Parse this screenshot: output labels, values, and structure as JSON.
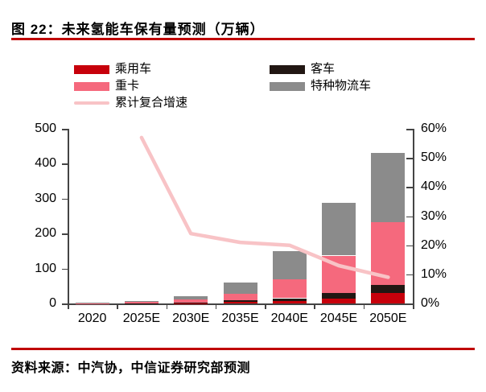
{
  "header": {
    "title": "图 22：未来氢能车保有量预测（万辆）"
  },
  "footer": {
    "source": "资料来源：中汽协，中信证券研究部预测"
  },
  "colors": {
    "accent_rule": "#c00000",
    "axis": "#444444",
    "text": "#000000"
  },
  "chart_data": {
    "type": "bar",
    "subtype": "stacked-bar-with-line",
    "title": "未来氢能车保有量预测（万辆）",
    "categories": [
      "2020",
      "2025E",
      "2030E",
      "2035E",
      "2040E",
      "2045E",
      "2050E"
    ],
    "bar_series": [
      {
        "name": "乘用车",
        "color": "#c7000b",
        "values": [
          0.1,
          0.5,
          1,
          5,
          8,
          15,
          30
        ]
      },
      {
        "name": "客车",
        "color": "#221713",
        "values": [
          0.2,
          0.5,
          1,
          4,
          7,
          15,
          22
        ]
      },
      {
        "name": "重卡",
        "color": "#f5697d",
        "values": [
          0.7,
          3,
          10,
          20,
          55,
          107,
          180
        ]
      },
      {
        "name": "特种物流车",
        "color": "#8b8b8b",
        "values": [
          1,
          4,
          10,
          31,
          80,
          150,
          200
        ]
      }
    ],
    "bar_totals": [
      2,
      8,
      22,
      60,
      150,
      287,
      432
    ],
    "line_series": {
      "name": "累计复合增速",
      "color": "#f8c3c6",
      "values_pct": [
        null,
        57,
        24,
        21,
        20,
        13,
        9
      ]
    },
    "left_axis": {
      "max": 500,
      "ticks": [
        0,
        100,
        200,
        300,
        400,
        500
      ]
    },
    "right_axis": {
      "max": 60,
      "tick_labels": [
        "0%",
        "10%",
        "20%",
        "30%",
        "40%",
        "50%",
        "60%"
      ]
    },
    "legend_position": "top",
    "grid": "off"
  }
}
